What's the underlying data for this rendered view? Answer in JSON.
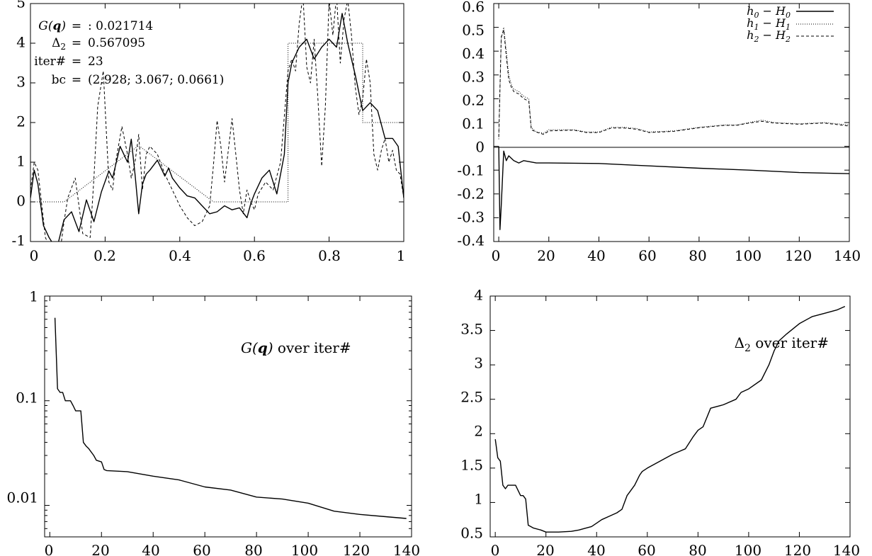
{
  "chart_data": [
    {
      "id": "top-left",
      "type": "line",
      "xlim": [
        0,
        1
      ],
      "ylim": [
        -1,
        5
      ],
      "xticks": [
        "0",
        "0.2",
        "0.4",
        "0.6",
        "0.8",
        "1"
      ],
      "yticks": [
        "-1",
        "0",
        "1",
        "2",
        "3",
        "4",
        "5"
      ],
      "xtick_values": [
        0,
        0.2,
        0.4,
        0.6,
        0.8,
        1
      ],
      "ytick_values": [
        -1,
        0,
        1,
        2,
        3,
        4,
        5
      ],
      "annotation": {
        "rows": [
          {
            "label": "G(q)",
            "eq": "=",
            "value": ": 0.021714"
          },
          {
            "label": "Δ2",
            "eq": "=",
            "value": "0.567095"
          },
          {
            "label": "iter#",
            "eq": "=",
            "value": "23"
          },
          {
            "label": "bc",
            "eq": "=",
            "value": "(2.928; 3.067; 0.0661)"
          }
        ]
      },
      "series": [
        {
          "style": "dotted",
          "x": [
            0,
            0.09,
            0.29,
            0.49,
            0.69,
            0.69,
            0.89,
            0.89,
            1.0
          ],
          "y": [
            0,
            0,
            1.42,
            0,
            0,
            4.0,
            4.0,
            2.0,
            2.0
          ]
        },
        {
          "style": "solid",
          "x": [
            0,
            0.01,
            0.02,
            0.035,
            0.05,
            0.07,
            0.09,
            0.11,
            0.13,
            0.15,
            0.17,
            0.19,
            0.21,
            0.22,
            0.24,
            0.25,
            0.26,
            0.27,
            0.28,
            0.29,
            0.3,
            0.31,
            0.32,
            0.34,
            0.36,
            0.37,
            0.38,
            0.4,
            0.42,
            0.44,
            0.46,
            0.48,
            0.5,
            0.52,
            0.54,
            0.56,
            0.58,
            0.59,
            0.6,
            0.62,
            0.64,
            0.66,
            0.68,
            0.69,
            0.7,
            0.72,
            0.74,
            0.76,
            0.78,
            0.8,
            0.82,
            0.835,
            0.85,
            0.87,
            0.89,
            0.91,
            0.93,
            0.95,
            0.97,
            0.985,
            1.0
          ],
          "y": [
            0.1,
            0.8,
            0.45,
            -0.6,
            -0.9,
            -1.2,
            -0.45,
            -0.25,
            -0.75,
            0.05,
            -0.5,
            0.25,
            0.78,
            0.6,
            1.4,
            1.2,
            1.0,
            1.58,
            0.7,
            -0.3,
            0.45,
            0.7,
            0.8,
            1.05,
            0.65,
            0.85,
            0.6,
            0.35,
            0.15,
            0.1,
            -0.1,
            -0.3,
            -0.25,
            -0.1,
            -0.2,
            -0.15,
            -0.4,
            -0.05,
            0.2,
            0.6,
            0.8,
            0.2,
            1.2,
            3.0,
            3.5,
            3.9,
            4.1,
            3.6,
            3.9,
            4.1,
            3.9,
            4.75,
            4.0,
            3.2,
            2.3,
            2.5,
            2.3,
            1.6,
            1.6,
            1.4,
            0.1
          ]
        },
        {
          "style": "dashed",
          "x": [
            0,
            0.01,
            0.02,
            0.04,
            0.06,
            0.08,
            0.09,
            0.1,
            0.12,
            0.14,
            0.16,
            0.17,
            0.18,
            0.195,
            0.21,
            0.22,
            0.23,
            0.245,
            0.26,
            0.27,
            0.28,
            0.29,
            0.3,
            0.31,
            0.32,
            0.34,
            0.36,
            0.38,
            0.4,
            0.42,
            0.44,
            0.46,
            0.48,
            0.49,
            0.5,
            0.51,
            0.52,
            0.53,
            0.54,
            0.55,
            0.56,
            0.57,
            0.58,
            0.59,
            0.6,
            0.61,
            0.63,
            0.65,
            0.67,
            0.69,
            0.7,
            0.71,
            0.72,
            0.73,
            0.74,
            0.75,
            0.76,
            0.77,
            0.78,
            0.79,
            0.8,
            0.81,
            0.82,
            0.83,
            0.84,
            0.85,
            0.86,
            0.87,
            0.88,
            0.89,
            0.9,
            0.91,
            0.92,
            0.93,
            0.94,
            0.95,
            0.96,
            0.97,
            0.98,
            0.99,
            1.0
          ],
          "y": [
            0.3,
            1.0,
            0.8,
            -0.9,
            -1.3,
            -1.2,
            -0.5,
            0.1,
            0.6,
            -0.8,
            -0.9,
            0.6,
            2.4,
            3.3,
            0.5,
            0.3,
            1.1,
            1.9,
            1.2,
            0.6,
            1.0,
            1.7,
            0.3,
            1.2,
            1.4,
            1.2,
            0.7,
            0.3,
            -0.1,
            -0.4,
            -0.6,
            -0.5,
            -0.1,
            0.9,
            2.05,
            1.4,
            0.5,
            1.3,
            2.1,
            1.2,
            0.3,
            -0.3,
            0.3,
            0.0,
            -0.2,
            0.2,
            0.5,
            0.3,
            1.0,
            3.3,
            3.6,
            3.3,
            4.5,
            5.2,
            3.4,
            3.0,
            4.1,
            2.6,
            0.9,
            2.4,
            5.1,
            4.2,
            5.2,
            3.5,
            4.6,
            5.1,
            4.2,
            2.9,
            2.2,
            2.6,
            3.6,
            3.0,
            1.2,
            0.8,
            1.3,
            1.6,
            1.0,
            1.3,
            0.8,
            0.7,
            0.1
          ]
        }
      ]
    },
    {
      "id": "top-right",
      "type": "line",
      "xlim": [
        -2,
        140
      ],
      "ylim": [
        -0.4,
        0.6
      ],
      "xticks": [
        "0",
        "20",
        "40",
        "60",
        "80",
        "100",
        "120",
        "140"
      ],
      "yticks": [
        "-0.4",
        "-0.3",
        "-0.2",
        "-0.1",
        "0",
        "0.1",
        "0.2",
        "0.3",
        "0.4",
        "0.5",
        "0.6"
      ],
      "xtick_values": [
        0,
        20,
        40,
        60,
        80,
        100,
        120,
        140
      ],
      "ytick_values": [
        -0.4,
        -0.3,
        -0.2,
        -0.1,
        0,
        0.1,
        0.2,
        0.3,
        0.4,
        0.5,
        0.6
      ],
      "legend_position": "top-right",
      "series": [
        {
          "name": "h0 − H0",
          "legend_main": "h",
          "legend_sub1": "0",
          "legend_mid": " − H",
          "legend_sub2": "0",
          "style": "solid",
          "x": [
            0,
            0.5,
            1,
            2,
            3,
            4,
            5,
            6,
            8,
            10,
            15,
            20,
            40,
            60,
            80,
            100,
            120,
            140
          ],
          "y": [
            0.0,
            -0.35,
            -0.25,
            -0.02,
            -0.06,
            -0.04,
            -0.05,
            -0.06,
            -0.07,
            -0.06,
            -0.07,
            -0.07,
            -0.072,
            -0.082,
            -0.092,
            -0.1,
            -0.11,
            -0.115
          ]
        },
        {
          "name": "h1 − H1",
          "legend_main": "h",
          "legend_sub1": "1",
          "legend_mid": " − H",
          "legend_sub2": "1",
          "style": "dotted",
          "x": [
            0,
            1,
            2,
            3,
            4,
            5,
            6,
            8,
            10,
            12,
            13,
            15,
            18,
            20,
            30,
            35,
            40,
            45,
            50,
            55,
            60,
            70,
            80,
            90,
            95,
            100,
            105,
            110,
            120,
            130,
            140
          ],
          "y": [
            0.03,
            0.45,
            0.5,
            0.4,
            0.3,
            0.26,
            0.24,
            0.23,
            0.21,
            0.2,
            0.08,
            0.06,
            0.055,
            0.07,
            0.07,
            0.06,
            0.06,
            0.08,
            0.08,
            0.075,
            0.06,
            0.065,
            0.08,
            0.09,
            0.09,
            0.1,
            0.11,
            0.1,
            0.095,
            0.1,
            0.09
          ]
        },
        {
          "name": "h2 − H2",
          "legend_main": "h",
          "legend_sub1": "2",
          "legend_mid": " − H",
          "legend_sub2": "2",
          "style": "dashed",
          "x": [
            0,
            1,
            2,
            3,
            4,
            5,
            6,
            8,
            10,
            12,
            13,
            15,
            18,
            20,
            30,
            35,
            40,
            45,
            50,
            55,
            60,
            70,
            80,
            90,
            95,
            100,
            105,
            110,
            120,
            130,
            140
          ],
          "y": [
            0.04,
            0.46,
            0.49,
            0.38,
            0.28,
            0.25,
            0.23,
            0.22,
            0.2,
            0.19,
            0.07,
            0.06,
            0.05,
            0.065,
            0.068,
            0.058,
            0.058,
            0.077,
            0.077,
            0.072,
            0.058,
            0.063,
            0.078,
            0.088,
            0.088,
            0.098,
            0.105,
            0.098,
            0.093,
            0.098,
            0.085
          ]
        }
      ]
    },
    {
      "id": "bottom-left",
      "type": "line",
      "yscale": "log",
      "xlim": [
        -2,
        140
      ],
      "ylim": [
        0.005,
        1
      ],
      "xticks": [
        "0",
        "20",
        "40",
        "60",
        "80",
        "100",
        "120",
        "140"
      ],
      "yticks": [
        "0.01",
        "0.1",
        "1"
      ],
      "xtick_values": [
        0,
        20,
        40,
        60,
        80,
        100,
        120,
        140
      ],
      "ytick_values": [
        0.01,
        0.1,
        1
      ],
      "annotation_main": "G(q)",
      "annotation_tail": " over iter#",
      "series": [
        {
          "style": "solid",
          "x": [
            2,
            3,
            4,
            5,
            6,
            7,
            8,
            9,
            10,
            11,
            12,
            13,
            14,
            15,
            17,
            18,
            20,
            21,
            22,
            30,
            40,
            50,
            60,
            70,
            80,
            90,
            100,
            110,
            120,
            130,
            138
          ],
          "y": [
            0.62,
            0.13,
            0.12,
            0.12,
            0.1,
            0.1,
            0.1,
            0.09,
            0.08,
            0.08,
            0.08,
            0.04,
            0.037,
            0.035,
            0.03,
            0.027,
            0.026,
            0.022,
            0.0215,
            0.021,
            0.019,
            0.0175,
            0.015,
            0.014,
            0.012,
            0.0115,
            0.0105,
            0.0088,
            0.0082,
            0.0078,
            0.0075
          ]
        }
      ]
    },
    {
      "id": "bottom-right",
      "type": "line",
      "xlim": [
        -2,
        140
      ],
      "ylim": [
        0.5,
        4
      ],
      "xticks": [
        "0",
        "20",
        "40",
        "60",
        "80",
        "100",
        "120",
        "140"
      ],
      "yticks": [
        "0.5",
        "1",
        "1.5",
        "2",
        "2.5",
        "3",
        "3.5",
        "4"
      ],
      "xtick_values": [
        0,
        20,
        40,
        60,
        80,
        100,
        120,
        140
      ],
      "ytick_values": [
        0.5,
        1,
        1.5,
        2,
        2.5,
        3,
        3.5,
        4
      ],
      "annotation_main": "Δ2",
      "annotation_tail": " over iter#",
      "series": [
        {
          "style": "solid",
          "x": [
            0,
            1,
            2,
            3,
            4,
            5,
            8,
            10,
            11,
            12,
            13,
            15,
            18,
            20,
            25,
            30,
            33,
            35,
            38,
            40,
            42,
            45,
            48,
            50,
            52,
            55,
            57,
            58,
            60,
            65,
            70,
            75,
            78,
            80,
            82,
            85,
            90,
            95,
            97,
            100,
            105,
            108,
            110,
            112,
            115,
            120,
            125,
            130,
            135,
            138
          ],
          "y": [
            1.92,
            1.65,
            1.6,
            1.25,
            1.2,
            1.25,
            1.25,
            1.1,
            1.1,
            1.05,
            0.67,
            0.63,
            0.6,
            0.57,
            0.57,
            0.58,
            0.6,
            0.62,
            0.65,
            0.7,
            0.75,
            0.8,
            0.85,
            0.9,
            1.1,
            1.25,
            1.4,
            1.45,
            1.5,
            1.6,
            1.7,
            1.78,
            1.95,
            2.05,
            2.1,
            2.37,
            2.42,
            2.5,
            2.6,
            2.65,
            2.78,
            3.0,
            3.2,
            3.35,
            3.45,
            3.6,
            3.7,
            3.75,
            3.8,
            3.85
          ]
        }
      ]
    }
  ]
}
